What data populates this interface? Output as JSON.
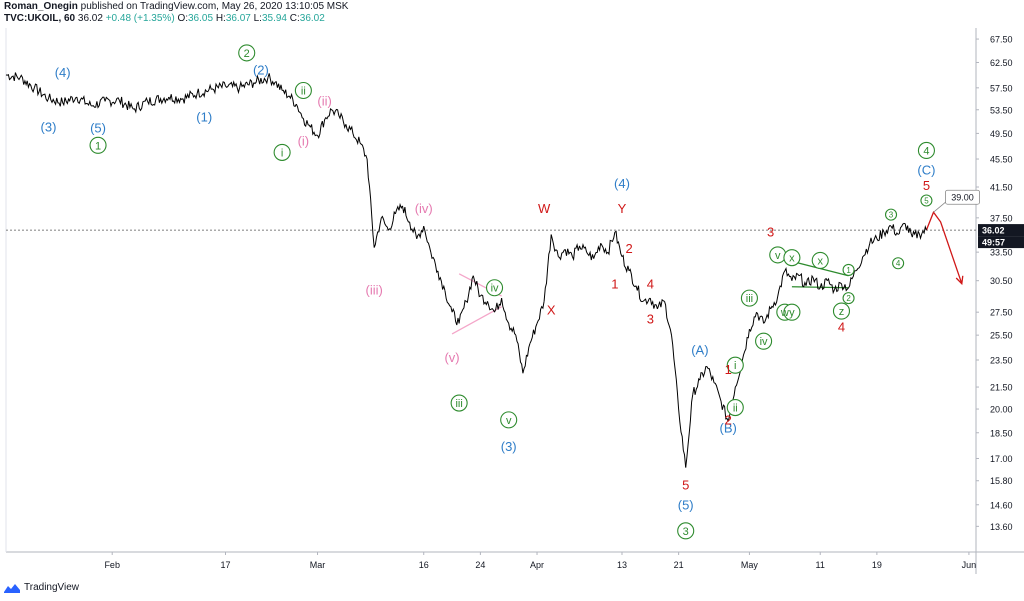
{
  "header": {
    "author": "Roman_Onegin",
    "published": " published on TradingView.com, May 26, 2020 13:10:05 MSK",
    "symbol": "TVC:UKOIL, 60",
    "last": "36.02",
    "change": "+0.48 (+1.35%)",
    "o_label": "O:",
    "o": "36.05",
    "h_label": "H:",
    "h": "36.07",
    "l_label": "L:",
    "l": "35.94",
    "c_label": "C:",
    "c": "36.02"
  },
  "brand": {
    "name": "TradingView",
    "logo_icon": "tradingview-logo-icon"
  },
  "colors": {
    "blue": "#2e7dc8",
    "green": "#2e8b2e",
    "pink": "#e57ab0",
    "red": "#d01818",
    "price_box": "#131722"
  },
  "chart_data": {
    "type": "line",
    "title": "",
    "xlabel": "",
    "ylabel": "",
    "ylim": [
      12.5,
      70.0
    ],
    "scale": "log",
    "grid": false,
    "price_axis_labels": [
      "67.50",
      "62.50",
      "57.50",
      "53.50",
      "49.50",
      "45.50",
      "41.50",
      "37.50",
      "33.50",
      "30.50",
      "27.50",
      "25.50",
      "23.50",
      "21.50",
      "20.00",
      "18.50",
      "17.00",
      "15.80",
      "14.60",
      "13.60"
    ],
    "current_price": "36.02",
    "countdown": "49:57",
    "time_axis_labels": [
      {
        "t": "2020-02-01",
        "label": "Feb"
      },
      {
        "t": "2020-02-17",
        "label": "17"
      },
      {
        "t": "2020-03-01",
        "label": "Mar"
      },
      {
        "t": "2020-03-16",
        "label": "16"
      },
      {
        "t": "2020-03-24",
        "label": "24"
      },
      {
        "t": "2020-04-01",
        "label": "Apr"
      },
      {
        "t": "2020-04-13",
        "label": "13"
      },
      {
        "t": "2020-04-21",
        "label": "21"
      },
      {
        "t": "2020-05-01",
        "label": "May"
      },
      {
        "t": "2020-05-11",
        "label": "11"
      },
      {
        "t": "2020-05-19",
        "label": "19"
      },
      {
        "t": "2020-06-01",
        "label": "Jun"
      }
    ],
    "series": [
      {
        "points": [
          [
            "2020-01-17",
            60.0
          ],
          [
            "2020-01-19",
            59.5
          ],
          [
            "2020-01-21",
            57.5
          ],
          [
            "2020-01-23",
            55.5
          ],
          [
            "2020-01-25",
            54.8
          ],
          [
            "2020-01-27",
            55.8
          ],
          [
            "2020-01-29",
            54.2
          ],
          [
            "2020-01-31",
            55.0
          ],
          [
            "2020-02-02",
            55.2
          ],
          [
            "2020-02-04",
            53.6
          ],
          [
            "2020-02-06",
            55.0
          ],
          [
            "2020-02-09",
            55.8
          ],
          [
            "2020-02-11",
            55.5
          ],
          [
            "2020-02-13",
            56.5
          ],
          [
            "2020-02-15",
            57.2
          ],
          [
            "2020-02-17",
            57.8
          ],
          [
            "2020-02-19",
            57.5
          ],
          [
            "2020-02-21",
            58.5
          ],
          [
            "2020-02-23",
            59.5
          ],
          [
            "2020-02-24",
            58.6
          ],
          [
            "2020-02-25",
            57.0
          ],
          [
            "2020-02-26",
            56.0
          ],
          [
            "2020-02-27",
            54.5
          ],
          [
            "2020-02-28",
            52.0
          ],
          [
            "2020-02-29",
            50.5
          ],
          [
            "2020-03-01",
            49.2
          ],
          [
            "2020-03-02",
            51.8
          ],
          [
            "2020-03-03",
            53.5
          ],
          [
            "2020-03-04",
            52.5
          ],
          [
            "2020-03-05",
            51.0
          ],
          [
            "2020-03-06",
            49.5
          ],
          [
            "2020-03-07",
            48.0
          ],
          [
            "2020-03-08",
            45.5
          ],
          [
            "2020-03-09",
            34.0
          ],
          [
            "2020-03-10",
            37.5
          ],
          [
            "2020-03-11",
            36.0
          ],
          [
            "2020-03-12",
            38.0
          ],
          [
            "2020-03-13",
            39.0
          ],
          [
            "2020-03-14",
            37.0
          ],
          [
            "2020-03-15",
            35.0
          ],
          [
            "2020-03-16",
            36.5
          ],
          [
            "2020-03-17",
            33.5
          ],
          [
            "2020-03-18",
            31.5
          ],
          [
            "2020-03-19",
            29.5
          ],
          [
            "2020-03-20",
            27.5
          ],
          [
            "2020-03-21",
            26.5
          ],
          [
            "2020-03-22",
            28.5
          ],
          [
            "2020-03-23",
            31.0
          ],
          [
            "2020-03-24",
            29.0
          ],
          [
            "2020-03-25",
            28.5
          ],
          [
            "2020-03-26",
            27.5
          ],
          [
            "2020-03-27",
            28.8
          ],
          [
            "2020-03-28",
            26.5
          ],
          [
            "2020-03-29",
            25.5
          ],
          [
            "2020-03-30",
            22.5
          ],
          [
            "2020-03-31",
            24.8
          ],
          [
            "2020-04-01",
            26.5
          ],
          [
            "2020-04-02",
            28.5
          ],
          [
            "2020-04-03",
            35.5
          ],
          [
            "2020-04-04",
            33.0
          ],
          [
            "2020-04-05",
            33.8
          ],
          [
            "2020-04-06",
            33.0
          ],
          [
            "2020-04-07",
            34.2
          ],
          [
            "2020-04-08",
            33.5
          ],
          [
            "2020-04-09",
            32.8
          ],
          [
            "2020-04-10",
            34.5
          ],
          [
            "2020-04-11",
            33.5
          ],
          [
            "2020-04-12",
            35.8
          ],
          [
            "2020-04-13",
            33.0
          ],
          [
            "2020-04-14",
            31.5
          ],
          [
            "2020-04-15",
            30.0
          ],
          [
            "2020-04-16",
            28.5
          ],
          [
            "2020-04-17",
            28.8
          ],
          [
            "2020-04-18",
            27.8
          ],
          [
            "2020-04-19",
            28.5
          ],
          [
            "2020-04-20",
            25.5
          ],
          [
            "2020-04-21",
            20.0
          ],
          [
            "2020-04-22",
            16.5
          ],
          [
            "2020-04-23",
            21.0
          ],
          [
            "2020-04-24",
            22.0
          ],
          [
            "2020-04-25",
            23.0
          ],
          [
            "2020-04-26",
            21.8
          ],
          [
            "2020-04-27",
            20.5
          ],
          [
            "2020-04-28",
            19.2
          ],
          [
            "2020-04-29",
            21.5
          ],
          [
            "2020-04-30",
            23.5
          ],
          [
            "2020-05-01",
            26.0
          ],
          [
            "2020-05-02",
            27.5
          ],
          [
            "2020-05-03",
            26.5
          ],
          [
            "2020-05-04",
            27.8
          ],
          [
            "2020-05-05",
            29.0
          ],
          [
            "2020-05-06",
            31.5
          ],
          [
            "2020-05-07",
            30.5
          ],
          [
            "2020-05-08",
            31.0
          ],
          [
            "2020-05-09",
            30.0
          ],
          [
            "2020-05-10",
            30.8
          ],
          [
            "2020-05-11",
            29.8
          ],
          [
            "2020-05-12",
            30.5
          ],
          [
            "2020-05-13",
            29.6
          ],
          [
            "2020-05-14",
            30.2
          ],
          [
            "2020-05-15",
            29.8
          ],
          [
            "2020-05-16",
            31.5
          ],
          [
            "2020-05-17",
            33.0
          ],
          [
            "2020-05-18",
            34.5
          ],
          [
            "2020-05-19",
            35.0
          ],
          [
            "2020-05-20",
            35.8
          ],
          [
            "2020-05-21",
            36.5
          ],
          [
            "2020-05-22",
            35.5
          ],
          [
            "2020-05-23",
            36.8
          ],
          [
            "2020-05-24",
            35.2
          ],
          [
            "2020-05-25",
            35.6
          ],
          [
            "2020-05-26",
            36.02
          ]
        ]
      }
    ],
    "projection": {
      "color": "#d01818",
      "points": [
        [
          "2020-05-26",
          36.02
        ],
        [
          "2020-05-27",
          38.2
        ],
        [
          "2020-05-28",
          37.0
        ],
        [
          "2020-05-31",
          30.2
        ]
      ],
      "target_label": "39.00"
    },
    "trendlines": [
      {
        "color": "#f4a6c9",
        "points": [
          [
            "2020-03-21",
            31.2
          ],
          [
            "2020-03-27",
            29.0
          ]
        ]
      },
      {
        "color": "#f4a6c9",
        "points": [
          [
            "2020-03-20",
            25.6
          ],
          [
            "2020-03-27",
            28.0
          ]
        ]
      },
      {
        "color": "#2e8b2e",
        "points": [
          [
            "2020-05-07",
            32.5
          ],
          [
            "2020-05-15",
            31.0
          ]
        ]
      },
      {
        "color": "#2e8b2e",
        "points": [
          [
            "2020-05-07",
            29.9
          ],
          [
            "2020-05-15",
            29.8
          ]
        ]
      }
    ],
    "annotations": [
      {
        "t": "2020-01-23",
        "v": 50.6,
        "text": "(3)",
        "color": "blue"
      },
      {
        "t": "2020-01-25",
        "v": 60.5,
        "text": "(4)",
        "color": "blue"
      },
      {
        "t": "2020-01-30",
        "v": 50.4,
        "text": "(5)",
        "color": "blue"
      },
      {
        "t": "2020-01-30",
        "v": 47.6,
        "text": "1",
        "color": "green",
        "circle": true
      },
      {
        "t": "2020-02-14",
        "v": 52.3,
        "text": "(1)",
        "color": "blue"
      },
      {
        "t": "2020-02-20",
        "v": 64.5,
        "text": "2",
        "color": "green",
        "circle": true
      },
      {
        "t": "2020-02-22",
        "v": 61.0,
        "text": "(2)",
        "color": "blue"
      },
      {
        "t": "2020-02-25",
        "v": 46.5,
        "text": "i",
        "color": "green",
        "circle": true
      },
      {
        "t": "2020-02-28",
        "v": 48.3,
        "text": "(i)",
        "color": "pink"
      },
      {
        "t": "2020-02-28",
        "v": 57.0,
        "text": "ii",
        "color": "green",
        "circle": true
      },
      {
        "t": "2020-03-02",
        "v": 55.1,
        "text": "(ii)",
        "color": "pink"
      },
      {
        "t": "2020-03-16",
        "v": 38.7,
        "text": "(iv)",
        "color": "pink"
      },
      {
        "t": "2020-03-09",
        "v": 29.6,
        "text": "(iii)",
        "color": "pink"
      },
      {
        "t": "2020-03-20",
        "v": 23.7,
        "text": "(v)",
        "color": "pink"
      },
      {
        "t": "2020-03-21",
        "v": 20.4,
        "text": "iii",
        "color": "green",
        "circle": true
      },
      {
        "t": "2020-03-26",
        "v": 29.8,
        "text": "iv",
        "color": "green",
        "circle": true
      },
      {
        "t": "2020-03-28",
        "v": 19.3,
        "text": "v",
        "color": "green",
        "circle": true
      },
      {
        "t": "2020-03-28",
        "v": 17.7,
        "text": "(3)",
        "color": "blue"
      },
      {
        "t": "2020-04-02",
        "v": 38.7,
        "text": "W",
        "color": "red"
      },
      {
        "t": "2020-04-03",
        "v": 27.7,
        "text": "X",
        "color": "red"
      },
      {
        "t": "2020-04-13",
        "v": 42.0,
        "text": "(4)",
        "color": "blue"
      },
      {
        "t": "2020-04-13",
        "v": 38.7,
        "text": "Y",
        "color": "red"
      },
      {
        "t": "2020-04-14",
        "v": 33.9,
        "text": "2",
        "color": "red"
      },
      {
        "t": "2020-04-12",
        "v": 30.2,
        "text": "1",
        "color": "red"
      },
      {
        "t": "2020-04-17",
        "v": 30.2,
        "text": "4",
        "color": "red"
      },
      {
        "t": "2020-04-17",
        "v": 26.9,
        "text": "3",
        "color": "red"
      },
      {
        "t": "2020-04-22",
        "v": 15.6,
        "text": "5",
        "color": "red"
      },
      {
        "t": "2020-04-22",
        "v": 14.6,
        "text": "(5)",
        "color": "blue"
      },
      {
        "t": "2020-04-22",
        "v": 13.4,
        "text": "3",
        "color": "green",
        "circle": true
      },
      {
        "t": "2020-04-24",
        "v": 24.3,
        "text": "(A)",
        "color": "blue"
      },
      {
        "t": "2020-04-28",
        "v": 18.8,
        "text": "(B)",
        "color": "blue"
      },
      {
        "t": "2020-04-28",
        "v": 22.8,
        "text": "1",
        "color": "red"
      },
      {
        "t": "2020-04-28",
        "v": 19.3,
        "text": "2",
        "color": "red"
      },
      {
        "t": "2020-04-29",
        "v": 23.1,
        "text": "i",
        "color": "green",
        "circle": true
      },
      {
        "t": "2020-04-29",
        "v": 20.1,
        "text": "ii",
        "color": "green",
        "circle": true
      },
      {
        "t": "2020-05-01",
        "v": 28.8,
        "text": "iii",
        "color": "green",
        "circle": true
      },
      {
        "t": "2020-05-03",
        "v": 25.0,
        "text": "iv",
        "color": "green",
        "circle": true
      },
      {
        "t": "2020-05-04",
        "v": 35.8,
        "text": "3",
        "color": "red"
      },
      {
        "t": "2020-05-05",
        "v": 33.2,
        "text": "v",
        "color": "green",
        "circle": true
      },
      {
        "t": "2020-05-07",
        "v": 32.9,
        "text": "x",
        "color": "green",
        "circle": true
      },
      {
        "t": "2020-05-11",
        "v": 32.6,
        "text": "x",
        "color": "green",
        "circle": true
      },
      {
        "t": "2020-05-06",
        "v": 27.5,
        "text": "w",
        "color": "green",
        "circle": true
      },
      {
        "t": "2020-05-07",
        "v": 27.5,
        "text": "y",
        "color": "green",
        "circle": true
      },
      {
        "t": "2020-05-15",
        "v": 31.6,
        "text": "1",
        "color": "green",
        "circle": true,
        "small": true
      },
      {
        "t": "2020-05-15",
        "v": 28.8,
        "text": "2",
        "color": "green",
        "circle": true,
        "small": true
      },
      {
        "t": "2020-05-14",
        "v": 27.6,
        "text": "z",
        "color": "green",
        "circle": true
      },
      {
        "t": "2020-05-14",
        "v": 26.2,
        "text": "4",
        "color": "red"
      },
      {
        "t": "2020-05-21",
        "v": 37.9,
        "text": "3",
        "color": "green",
        "circle": true,
        "small": true
      },
      {
        "t": "2020-05-22",
        "v": 32.3,
        "text": "4",
        "color": "green",
        "circle": true,
        "small": true
      },
      {
        "t": "2020-05-26",
        "v": 46.8,
        "text": "4",
        "color": "green",
        "circle": true
      },
      {
        "t": "2020-05-26",
        "v": 43.9,
        "text": "(C)",
        "color": "blue"
      },
      {
        "t": "2020-05-26",
        "v": 41.7,
        "text": "5",
        "color": "red"
      },
      {
        "t": "2020-05-26",
        "v": 39.7,
        "text": "5",
        "color": "green",
        "circle": true,
        "small": true
      }
    ]
  }
}
